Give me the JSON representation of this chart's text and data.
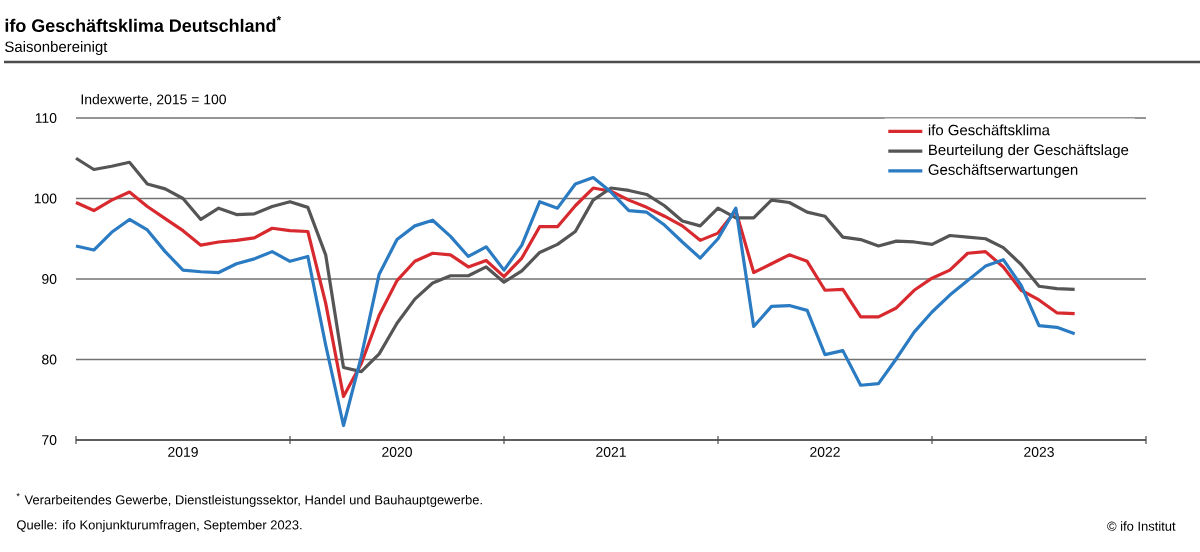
{
  "chart_data": {
    "type": "line",
    "title": "ifo Geschäftsklima Deutschland$^{*}$",
    "subtitle": "Saisonbereinigt",
    "ylabel": "Indexwerte, 2015 = 100",
    "x": [
      "2019-01",
      "2019-02",
      "2019-03",
      "2019-04",
      "2019-05",
      "2019-06",
      "2019-07",
      "2019-08",
      "2019-09",
      "2019-10",
      "2019-11",
      "2019-12",
      "2020-01",
      "2020-02",
      "2020-03",
      "2020-04",
      "2020-05",
      "2020-06",
      "2020-07",
      "2020-08",
      "2020-09",
      "2020-10",
      "2020-11",
      "2020-12",
      "2021-01",
      "2021-02",
      "2021-03",
      "2021-04",
      "2021-05",
      "2021-06",
      "2021-07",
      "2021-08",
      "2021-09",
      "2021-10",
      "2021-11",
      "2021-12",
      "2022-01",
      "2022-02",
      "2022-03",
      "2022-04",
      "2022-05",
      "2022-06",
      "2022-07",
      "2022-08",
      "2022-09",
      "2022-10",
      "2022-11",
      "2022-12",
      "2023-01",
      "2023-02",
      "2023-03",
      "2023-04",
      "2023-05",
      "2023-06",
      "2023-07",
      "2023-08",
      "2023-09"
    ],
    "series": [
      {
        "name": "ifo Geschäftsklima",
        "color": "#d7292e",
        "values": [
          99.5,
          98.5,
          99.8,
          100.8,
          99.0,
          97.5,
          96.0,
          94.2,
          94.6,
          94.8,
          95.1,
          96.3,
          96.0,
          95.9,
          87.0,
          75.4,
          79.5,
          85.5,
          89.8,
          92.2,
          93.2,
          93.0,
          91.5,
          92.3,
          90.3,
          92.6,
          96.5,
          96.5,
          99.1,
          101.3,
          100.9,
          99.8,
          98.9,
          97.8,
          96.6,
          94.8,
          95.7,
          98.5,
          90.8,
          91.9,
          93.0,
          92.2,
          88.6,
          88.7,
          85.3,
          85.3,
          86.4,
          88.6,
          90.1,
          91.1,
          93.2,
          93.4,
          91.5,
          88.6,
          87.4,
          85.8,
          85.7
        ]
      },
      {
        "name": "Beurteilung der Geschäftslage",
        "color": "#555555",
        "values": [
          105.0,
          103.6,
          104.0,
          104.5,
          101.8,
          101.2,
          100.0,
          97.4,
          98.8,
          98.0,
          98.1,
          99.0,
          99.6,
          98.9,
          93.0,
          79.0,
          78.5,
          80.7,
          84.5,
          87.5,
          89.5,
          90.4,
          90.4,
          91.5,
          89.6,
          91.0,
          93.3,
          94.3,
          95.9,
          99.8,
          101.3,
          101.0,
          100.5,
          99.1,
          97.2,
          96.6,
          98.8,
          97.6,
          97.6,
          99.8,
          99.5,
          98.3,
          97.8,
          95.2,
          94.9,
          94.1,
          94.7,
          94.6,
          94.3,
          95.4,
          95.2,
          95.0,
          93.9,
          91.8,
          89.1,
          88.8,
          88.7
        ]
      },
      {
        "name": "Geschäftserwartungen",
        "color": "#2b7bc3",
        "values": [
          94.1,
          93.6,
          95.8,
          97.4,
          96.1,
          93.4,
          91.1,
          90.9,
          90.8,
          91.9,
          92.5,
          93.4,
          92.2,
          92.8,
          81.8,
          71.8,
          80.4,
          90.6,
          94.9,
          96.6,
          97.3,
          95.3,
          92.8,
          94.0,
          91.1,
          94.2,
          99.6,
          98.8,
          101.8,
          102.6,
          100.8,
          98.5,
          98.3,
          96.7,
          94.6,
          92.6,
          95.0,
          98.8,
          84.1,
          86.6,
          86.7,
          86.1,
          80.6,
          81.1,
          76.8,
          77.0,
          80.1,
          83.4,
          85.9,
          88.0,
          89.8,
          91.6,
          92.4,
          89.2,
          84.2,
          84.0,
          83.2
        ]
      }
    ],
    "xlim": [
      "2019-01",
      "2024-01"
    ],
    "xticks": [
      {
        "value": "2019-01",
        "label": null
      },
      {
        "value": "2019-07",
        "label": "2019"
      },
      {
        "value": "2020-01",
        "label": null
      },
      {
        "value": "2020-07",
        "label": "2020"
      },
      {
        "value": "2021-01",
        "label": null
      },
      {
        "value": "2021-07",
        "label": "2021"
      },
      {
        "value": "2022-01",
        "label": null
      },
      {
        "value": "2022-07",
        "label": "2022"
      },
      {
        "value": "2023-01",
        "label": null
      },
      {
        "value": "2023-07",
        "label": "2023"
      },
      {
        "value": "2024-01",
        "label": null
      }
    ],
    "ylim": [
      70,
      110
    ],
    "yticks": [
      70,
      80,
      90,
      100,
      110
    ],
    "grid": "y",
    "legend": "top right",
    "marker": "none",
    "line_style": "solid",
    "annotations": [
      "$^{*}$ Verarbeitendes Gewerbe, Dienstleistungssektor, Handel und Bauhauptgewerbe.",
      "Quelle: ifo Konjunkturumfragen, September 2023.",
      "© ifo Institut"
    ]
  }
}
